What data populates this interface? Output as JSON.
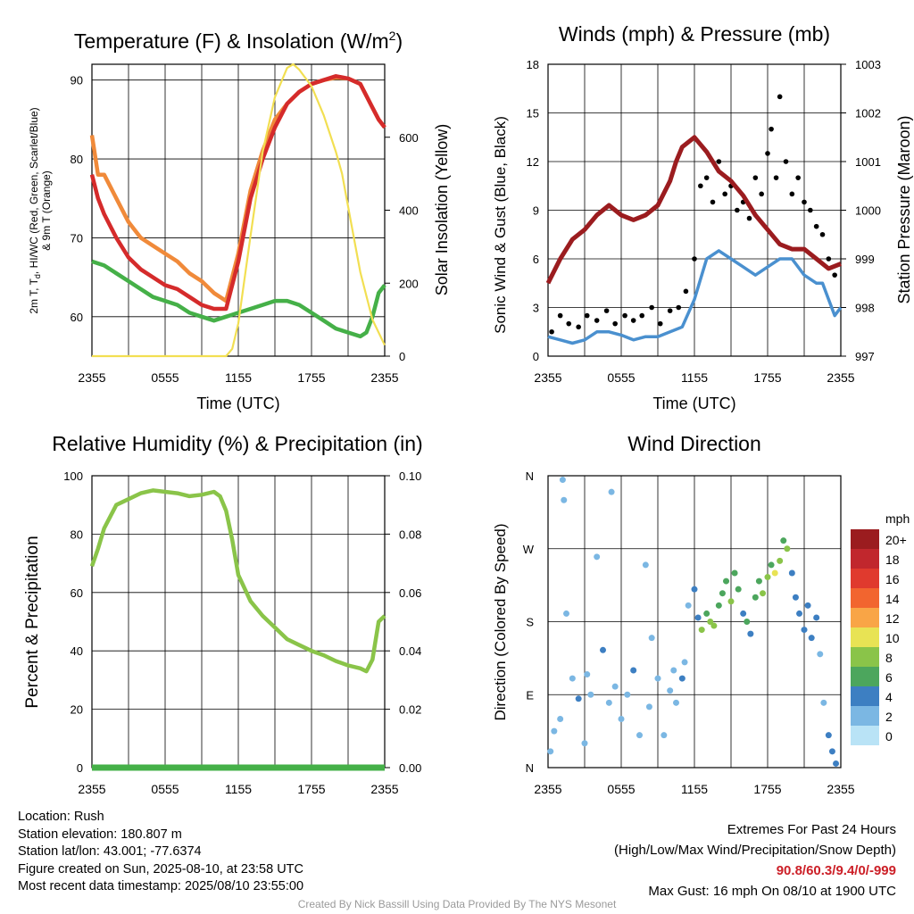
{
  "panels": {
    "temperature": {
      "title_main": "Temperature (F) & Insolation (W/m",
      "title_sup": "2",
      "title_close": ")",
      "ylabel_left_1": "2m T, T",
      "ylabel_left_sub": "d",
      "ylabel_left_2": ", HI/WC (Red, Green, Scarlet/Blue)",
      "ylabel_left_3": "& 9m T (Orange)",
      "ylabel_right": "Solar Insolation (Yellow)",
      "xlabel": "Time (UTC)"
    },
    "winds": {
      "title": "Winds (mph) & Pressure (mb)",
      "ylabel_left": "Sonic Wind & Gust (Blue, Black)",
      "ylabel_right": "Station Pressure (Maroon)",
      "xlabel": "Time (UTC)"
    },
    "humidity": {
      "title": "Relative Humidity (%) & Precipitation (in)",
      "ylabel_left": "Percent & Precipitation"
    },
    "direction": {
      "title": "Wind Direction",
      "ylabel_left": "Direction (Colored By Speed)",
      "colorbar_unit": "mph",
      "colorbar_labels": [
        "20+",
        "18",
        "16",
        "14",
        "12",
        "10",
        "8",
        "6",
        "4",
        "2",
        "0"
      ],
      "colorbar_colors": [
        "#9b1c1f",
        "#c1272d",
        "#e03a2e",
        "#f2652f",
        "#f9a546",
        "#e8e354",
        "#8ac449",
        "#4ca65d",
        "#3d7fc2",
        "#7bb7e3",
        "#b9e3f6"
      ]
    }
  },
  "info": {
    "location": "Location: Rush",
    "elevation": "Station elevation: 180.807 m",
    "latlon": "Station lat/lon: 43.001; -77.6374",
    "created": "Figure created on Sun, 2025-08-10, at 23:58 UTC",
    "recent": "Most recent data timestamp: 2025/08/10 23:55:00"
  },
  "extremes": {
    "heading": "Extremes For Past 24 Hours",
    "legend": "(High/Low/Max Wind/Precipitation/Snow Depth)",
    "values": "90.8/60.3/9.4/0/-999",
    "max_gust": "Max Gust: 16 mph On 08/10 at 1900 UTC"
  },
  "credit": "Created By Nick Bassill Using Data Provided By The NYS Mesonet",
  "chart_data": [
    {
      "type": "line",
      "panel": "temperature",
      "x_ticks": [
        "2355",
        "0555",
        "1155",
        "1755",
        "2355"
      ],
      "x_hours": [
        0,
        24
      ],
      "ylim_left": [
        55,
        92
      ],
      "yticks_left": [
        60,
        70,
        80,
        90
      ],
      "ylim_right": [
        0,
        800
      ],
      "yticks_right": [
        0,
        200,
        400,
        600
      ],
      "series": [
        {
          "color": "#f08a3a",
          "axis": "left",
          "x": [
            0,
            0.5,
            1,
            2,
            3,
            4,
            5,
            6,
            7,
            8,
            9,
            10,
            11,
            12,
            13,
            14,
            15,
            16,
            17,
            18,
            19,
            20,
            21,
            22,
            22.5,
            23,
            23.5,
            24
          ],
          "y": [
            83,
            78,
            78,
            75,
            72,
            70,
            69,
            68,
            67,
            65.5,
            64.5,
            63,
            62,
            68,
            76,
            81,
            85,
            87,
            88.5,
            89.5,
            90,
            90.3,
            90.2,
            89.5,
            88,
            86.5,
            85,
            84
          ]
        },
        {
          "color": "#d52b2b",
          "axis": "left",
          "x": [
            0,
            0.5,
            1,
            2,
            3,
            4,
            5,
            6,
            7,
            8,
            9,
            10,
            11,
            12,
            13,
            14,
            15,
            16,
            17,
            18,
            19,
            20,
            21,
            22,
            22.5,
            23,
            23.5,
            24
          ],
          "y": [
            78,
            75,
            73,
            70,
            67.5,
            66,
            65,
            64,
            63.5,
            62.5,
            61.5,
            61,
            61,
            67,
            75,
            80,
            84,
            87,
            88.5,
            89.5,
            90,
            90.5,
            90.2,
            89.5,
            88,
            86.5,
            85,
            84
          ]
        },
        {
          "color": "#45b048",
          "axis": "left",
          "x": [
            0,
            1,
            2,
            3,
            4,
            5,
            6,
            7,
            8,
            9,
            10,
            11,
            12,
            13,
            14,
            15,
            16,
            17,
            18,
            19,
            20,
            21,
            22,
            22.5,
            23,
            23.5,
            24
          ],
          "y": [
            67,
            66.5,
            65.5,
            64.5,
            63.5,
            62.5,
            62,
            61.5,
            60.5,
            60,
            59.5,
            60,
            60.5,
            61,
            61.5,
            62,
            62,
            61.5,
            60.5,
            59.5,
            58.5,
            58,
            57.5,
            58,
            60,
            63,
            64
          ]
        },
        {
          "color": "#f2df52",
          "axis": "right",
          "x": [
            0,
            1,
            2,
            3,
            4,
            5,
            6,
            7,
            8,
            9,
            10,
            11,
            11.5,
            12,
            13,
            14,
            15,
            16,
            16.5,
            17,
            18,
            19,
            20,
            20.5,
            21,
            21.5,
            22,
            23,
            24
          ],
          "y": [
            0,
            0,
            0,
            0,
            0,
            0,
            0,
            0,
            0,
            0,
            0,
            0,
            20,
            90,
            330,
            560,
            710,
            790,
            800,
            785,
            740,
            660,
            560,
            500,
            410,
            320,
            230,
            100,
            30
          ]
        }
      ]
    },
    {
      "type": "line",
      "panel": "winds",
      "x_ticks": [
        "2355",
        "0555",
        "1155",
        "1755",
        "2355"
      ],
      "x_hours": [
        0,
        24
      ],
      "ylim_left": [
        0,
        18
      ],
      "yticks_left": [
        0,
        3,
        6,
        9,
        12,
        15,
        18
      ],
      "ylim_right": [
        997,
        1003
      ],
      "yticks_right": [
        997,
        998,
        999,
        1000,
        1001,
        1002,
        1003
      ],
      "series": [
        {
          "name": "Sonic Wind",
          "type": "line",
          "color": "#4a90cf",
          "axis": "left",
          "x": [
            0,
            1,
            2,
            3,
            4,
            5,
            6,
            7,
            8,
            9,
            10,
            11,
            12,
            13,
            14,
            15,
            16,
            17,
            18,
            19,
            20,
            21,
            22,
            22.5,
            23,
            23.5,
            24
          ],
          "y": [
            1.2,
            1.0,
            0.8,
            1.0,
            1.5,
            1.5,
            1.3,
            1.0,
            1.2,
            1.2,
            1.5,
            1.8,
            3.5,
            6,
            6.5,
            6,
            5.5,
            5,
            5.5,
            6,
            6,
            5,
            4.5,
            4.5,
            3.5,
            2.5,
            3
          ]
        },
        {
          "name": "Gust",
          "type": "scatter",
          "color": "#000000",
          "axis": "left",
          "x": [
            0.3,
            1,
            1.7,
            2.5,
            3.2,
            4,
            4.8,
            5.5,
            6.3,
            7,
            7.7,
            8.5,
            9.2,
            10,
            10.7,
            11.3,
            12,
            12.5,
            13,
            13.5,
            14,
            14.5,
            15,
            15.5,
            16,
            16.5,
            17,
            17.5,
            18,
            18.3,
            18.7,
            19,
            19.5,
            20,
            20.5,
            21,
            21.5,
            22,
            22.5,
            23,
            23.5
          ],
          "y": [
            1.5,
            2.5,
            2,
            1.8,
            2.5,
            2.2,
            2.8,
            2,
            2.5,
            2.2,
            2.5,
            3,
            2,
            2.8,
            3,
            4,
            6,
            10.5,
            11,
            9.5,
            12,
            10,
            10.5,
            9,
            9.5,
            8.5,
            11,
            10,
            12.5,
            14,
            11,
            16,
            12,
            10,
            11,
            9.5,
            9,
            8,
            7.5,
            6,
            5
          ]
        },
        {
          "name": "Station Pressure",
          "type": "line",
          "color": "#9b1c1f",
          "axis": "right",
          "x": [
            0,
            1,
            2,
            3,
            4,
            5,
            5.5,
            6,
            7,
            8,
            9,
            10,
            10.5,
            11,
            12,
            13,
            14,
            15,
            16,
            17,
            18,
            19,
            20,
            21,
            22,
            23,
            24
          ],
          "y": [
            998.5,
            999.0,
            999.4,
            999.6,
            999.9,
            1000.1,
            1000.0,
            999.9,
            999.8,
            999.9,
            1000.1,
            1000.6,
            1001.0,
            1001.3,
            1001.5,
            1001.2,
            1000.8,
            1000.6,
            1000.3,
            999.9,
            999.6,
            999.3,
            999.2,
            999.2,
            999.0,
            998.8,
            998.9
          ]
        }
      ]
    },
    {
      "type": "line",
      "panel": "humidity",
      "x_ticks": [
        "2355",
        "0555",
        "1155",
        "1755",
        "2355"
      ],
      "x_hours": [
        0,
        24
      ],
      "ylim_left": [
        0,
        100
      ],
      "yticks_left": [
        0,
        20,
        40,
        60,
        80,
        100
      ],
      "ylim_right": [
        0,
        0.1
      ],
      "yticks_right": [
        "0.00",
        "0.02",
        "0.04",
        "0.06",
        "0.08",
        "0.10"
      ],
      "series": [
        {
          "name": "Relative Humidity",
          "color": "#8ac449",
          "axis": "left",
          "x": [
            0,
            0.5,
            1,
            1.5,
            2,
            3,
            4,
            5,
            6,
            7,
            8,
            9,
            10,
            10.5,
            11,
            11.5,
            12,
            13,
            14,
            15,
            16,
            17,
            18,
            19,
            20,
            21,
            22,
            22.5,
            23,
            23.5,
            24
          ],
          "y": [
            69,
            75,
            82,
            86,
            90,
            92,
            94,
            95,
            94.5,
            94,
            93,
            93.5,
            94.5,
            93,
            88,
            78,
            66,
            57,
            52,
            48,
            44,
            42,
            40,
            38.5,
            36.5,
            35,
            34,
            33,
            37,
            50,
            52
          ]
        },
        {
          "name": "Precipitation",
          "color": "#45b048",
          "axis": "right",
          "x": [
            0,
            24
          ],
          "y": [
            0,
            0
          ]
        }
      ]
    },
    {
      "type": "scatter",
      "panel": "direction",
      "x_ticks": [
        "2355",
        "0555",
        "1155",
        "1755",
        "2355"
      ],
      "x_hours": [
        0,
        24
      ],
      "ylim": [
        0,
        360
      ],
      "yticks": [
        "N",
        "E",
        "S",
        "W",
        "N"
      ],
      "points": [
        [
          0.2,
          20,
          1
        ],
        [
          0.5,
          45,
          1
        ],
        [
          1,
          60,
          1
        ],
        [
          1.2,
          355,
          1
        ],
        [
          1.3,
          330,
          1
        ],
        [
          1.5,
          190,
          1
        ],
        [
          2,
          110,
          1
        ],
        [
          2.5,
          85,
          3
        ],
        [
          3,
          30,
          1
        ],
        [
          3.2,
          115,
          1
        ],
        [
          3.5,
          90,
          1
        ],
        [
          4,
          260,
          1
        ],
        [
          4.5,
          145,
          3
        ],
        [
          5,
          80,
          1
        ],
        [
          5.2,
          340,
          1
        ],
        [
          5.5,
          100,
          2
        ],
        [
          6,
          60,
          1
        ],
        [
          6.5,
          90,
          1
        ],
        [
          7,
          120,
          3
        ],
        [
          7.5,
          40,
          1
        ],
        [
          8,
          250,
          1
        ],
        [
          8.3,
          75,
          1
        ],
        [
          8.5,
          160,
          1
        ],
        [
          9,
          110,
          2
        ],
        [
          9.5,
          40,
          1
        ],
        [
          10,
          95,
          1
        ],
        [
          10.3,
          120,
          2
        ],
        [
          10.5,
          80,
          1
        ],
        [
          11,
          110,
          3
        ],
        [
          11.2,
          130,
          1
        ],
        [
          11.5,
          200,
          2
        ],
        [
          12,
          220,
          3
        ],
        [
          12.3,
          185,
          3
        ],
        [
          12.6,
          170,
          8
        ],
        [
          13,
          190,
          6
        ],
        [
          13.3,
          180,
          7
        ],
        [
          13.6,
          175,
          8
        ],
        [
          14,
          200,
          6
        ],
        [
          14.3,
          215,
          5
        ],
        [
          14.6,
          230,
          6
        ],
        [
          15,
          205,
          7
        ],
        [
          15.3,
          240,
          5
        ],
        [
          15.6,
          220,
          6
        ],
        [
          16,
          190,
          4
        ],
        [
          16.3,
          180,
          6
        ],
        [
          16.6,
          165,
          4
        ],
        [
          17,
          210,
          5
        ],
        [
          17.3,
          230,
          6
        ],
        [
          17.6,
          215,
          8
        ],
        [
          18,
          235,
          7
        ],
        [
          18.3,
          250,
          6
        ],
        [
          18.6,
          240,
          9
        ],
        [
          19,
          255,
          7
        ],
        [
          19.3,
          280,
          6
        ],
        [
          19.6,
          270,
          8
        ],
        [
          20,
          240,
          4
        ],
        [
          20.3,
          210,
          4
        ],
        [
          20.6,
          190,
          3
        ],
        [
          21,
          170,
          4
        ],
        [
          21.3,
          200,
          3
        ],
        [
          21.6,
          160,
          4
        ],
        [
          22,
          185,
          3
        ],
        [
          22.3,
          140,
          1
        ],
        [
          22.6,
          80,
          1
        ],
        [
          23,
          40,
          4
        ],
        [
          23.3,
          20,
          4
        ],
        [
          23.6,
          5,
          4
        ]
      ]
    }
  ]
}
